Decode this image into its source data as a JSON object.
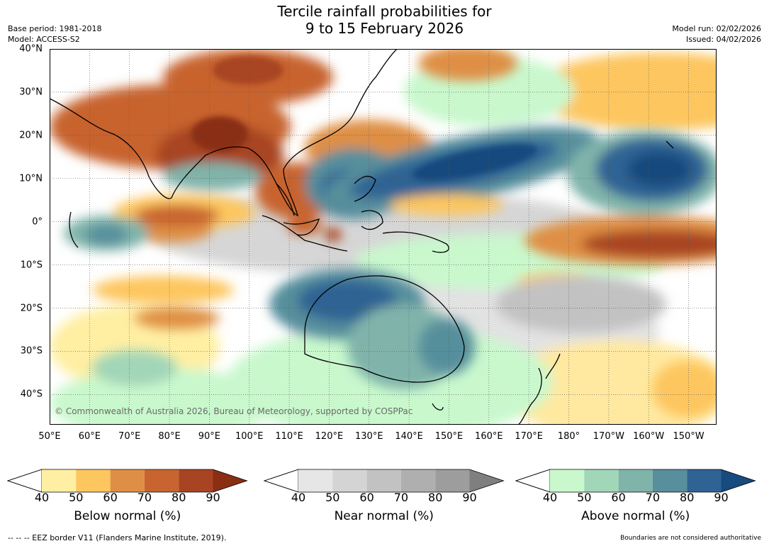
{
  "title": {
    "line1": "Tercile rainfall probabilities for",
    "line2": "9 to 15 February 2026"
  },
  "meta_left": {
    "base_period": "Base period: 1981-2018",
    "model": "Model: ACCESS-S2"
  },
  "meta_right": {
    "model_run": "Model run: 02/02/2026",
    "issued": "Issued: 04/02/2026"
  },
  "map": {
    "copyright": "© Commonwealth of Australia 2026, Bureau of Meteorology, supported by COSPPac",
    "lat_labels": [
      "40°N",
      "30°N",
      "20°N",
      "10°N",
      "0°",
      "10°S",
      "20°S",
      "30°S",
      "40°S"
    ],
    "lat_values": [
      40,
      30,
      20,
      10,
      0,
      -10,
      -20,
      -30,
      -40
    ],
    "lon_labels": [
      "50°E",
      "60°E",
      "70°E",
      "80°E",
      "90°E",
      "100°E",
      "110°E",
      "120°E",
      "130°E",
      "140°E",
      "150°E",
      "160°E",
      "170°E",
      "180°",
      "170°W",
      "160°W",
      "150°W"
    ],
    "lon_values": [
      50,
      60,
      70,
      80,
      90,
      100,
      110,
      120,
      130,
      140,
      150,
      160,
      170,
      180,
      190,
      200,
      210
    ],
    "extent": {
      "lon_min": 50,
      "lon_max": 217,
      "lat_min": -47,
      "lat_max": 40
    }
  },
  "legends": [
    {
      "label": "Below normal (%)",
      "ticks": [
        "40",
        "50",
        "60",
        "70",
        "80",
        "90"
      ],
      "colors": [
        "#ffefa3",
        "#fdc65e",
        "#df8f45",
        "#c8642f",
        "#a84422",
        "#8a2e14"
      ]
    },
    {
      "label": "Near normal (%)",
      "ticks": [
        "40",
        "50",
        "60",
        "70",
        "80",
        "90"
      ],
      "colors": [
        "#e6e6e6",
        "#d4d4d4",
        "#c2c2c2",
        "#afafaf",
        "#9d9d9d",
        "#7f7f7f"
      ]
    },
    {
      "label": "Above normal (%)",
      "ticks": [
        "40",
        "50",
        "60",
        "70",
        "80",
        "90"
      ],
      "colors": [
        "#c9f8cd",
        "#a2d6b8",
        "#80b4aa",
        "#578f9c",
        "#2f6394",
        "#174a7e"
      ]
    }
  ],
  "footer": {
    "left": "--  --  -- EEZ border V11 (Flanders Marine Institute, 2019).",
    "right": "Boundaries are not considered authoritative"
  }
}
